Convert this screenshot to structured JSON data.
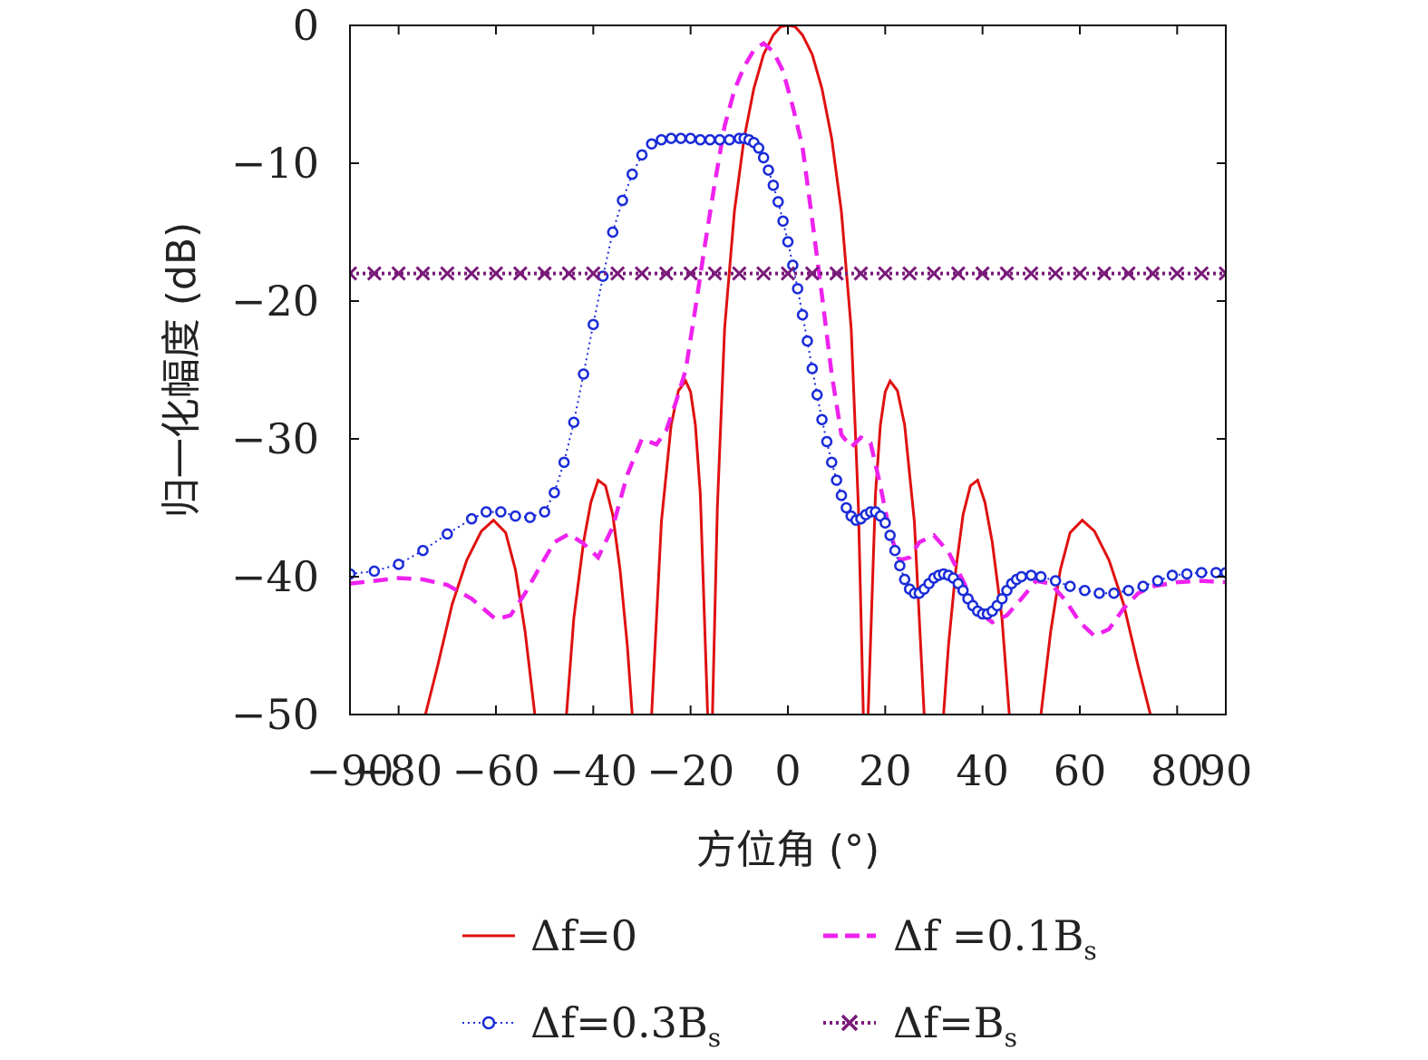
{
  "chart_data": {
    "type": "line",
    "xlabel": "方位角 (°)",
    "ylabel": "归一化幅度 (dB)",
    "xlim": [
      -90,
      90
    ],
    "ylim": [
      -50,
      0
    ],
    "xticks": [
      -90,
      -80,
      -60,
      -40,
      -20,
      0,
      20,
      40,
      60,
      80,
      90
    ],
    "xtick_labels": [
      "−90",
      "−80",
      "−60",
      "−40",
      "−20",
      "0",
      "20",
      "40",
      "60",
      "80",
      "90"
    ],
    "yticks": [
      0,
      -10,
      -20,
      -30,
      -40,
      -50
    ],
    "ytick_labels": [
      "0",
      "−10",
      "−20",
      "−30",
      "−40",
      "−50"
    ],
    "grid": false,
    "legend_position": "bottom",
    "series": [
      {
        "name": "Δf=0",
        "legend": {
          "main": "Δf=0",
          "sub": ""
        },
        "color": "#e01010",
        "style": "solid",
        "segments": [
          {
            "x": [
              -74.5,
              -72,
              -69,
              -66,
              -63,
              -60.5,
              -58,
              -56,
              -54,
              -52
            ],
            "y": [
              -50,
              -46.5,
              -42,
              -38.8,
              -36.7,
              -35.9,
              -36.8,
              -39.5,
              -44,
              -50
            ]
          },
          {
            "x": [
              -45.5,
              -44,
              -42,
              -40.5,
              -39,
              -37.5,
              -36,
              -34.5,
              -33,
              -32
            ],
            "y": [
              -50,
              -43,
              -37.5,
              -34.6,
              -33,
              -33.4,
              -35.5,
              -39.5,
              -45,
              -50
            ]
          },
          {
            "x": [
              -28,
              -26,
              -24,
              -22.5,
              -21,
              -20,
              -19,
              -18,
              -16.5
            ],
            "y": [
              -50,
              -36,
              -29,
              -26.5,
              -25.8,
              -26.6,
              -29,
              -34,
              -50
            ]
          },
          {
            "x": [
              -15.5,
              -14.5,
              -13,
              -11,
              -9,
              -7,
              -5,
              -3,
              -1.5,
              0,
              1.5,
              3,
              5,
              7,
              9,
              11,
              13,
              14.5,
              15.5
            ],
            "y": [
              -50,
              -35,
              -22,
              -13.5,
              -8.2,
              -4.6,
              -2.1,
              -0.7,
              -0.1,
              0,
              -0.1,
              -0.7,
              -2.1,
              -4.6,
              -8.2,
              -13.5,
              -22,
              -35,
              -50
            ]
          },
          {
            "x": [
              16.5,
              18,
              19,
              20,
              21,
              22.5,
              24,
              26,
              28
            ],
            "y": [
              -50,
              -34,
              -29,
              -26.6,
              -25.8,
              -26.5,
              -29,
              -36,
              -50
            ]
          },
          {
            "x": [
              32,
              33,
              34.5,
              36,
              37.5,
              39,
              40.5,
              42,
              44,
              45.5
            ],
            "y": [
              -50,
              -45,
              -39.5,
              -35.5,
              -33.4,
              -33,
              -34.6,
              -37.5,
              -43,
              -50
            ]
          },
          {
            "x": [
              52,
              54,
              56,
              58,
              60.5,
              63,
              66,
              69,
              72,
              74.5
            ],
            "y": [
              -50,
              -44,
              -39.5,
              -36.8,
              -35.9,
              -36.7,
              -38.8,
              -42,
              -46.5,
              -50
            ]
          }
        ]
      },
      {
        "name": "Δf =0.1Bs",
        "legend": {
          "main": "Δf =0.1B",
          "sub": "s"
        },
        "color": "#ee22ee",
        "style": "dashed",
        "x": [
          -90,
          -85,
          -80,
          -75,
          -70,
          -65,
          -60,
          -57,
          -54,
          -51,
          -48,
          -45,
          -42,
          -39,
          -36,
          -33,
          -30,
          -27,
          -25,
          -23,
          -21,
          -19,
          -17,
          -15,
          -13,
          -11,
          -9,
          -7,
          -5,
          -3,
          -1,
          1,
          3,
          5,
          7,
          9,
          11,
          13,
          15,
          17,
          19,
          21,
          23,
          25,
          27,
          30,
          33,
          36,
          39,
          42,
          45,
          48,
          51,
          54,
          57,
          60,
          63,
          66,
          69,
          72,
          75,
          80,
          85,
          90
        ],
        "y": [
          -40.5,
          -40.3,
          -40.1,
          -40.2,
          -40.6,
          -41.6,
          -43.1,
          -42.8,
          -41.2,
          -39.3,
          -37.5,
          -36.9,
          -37.6,
          -38.6,
          -36.4,
          -32.6,
          -30.0,
          -30.4,
          -29.4,
          -27.3,
          -25.0,
          -20.5,
          -15.8,
          -11.4,
          -7.3,
          -4.7,
          -3.0,
          -1.8,
          -1.3,
          -1.9,
          -3.3,
          -5.9,
          -8.8,
          -14.1,
          -19.6,
          -25.3,
          -29.7,
          -30.6,
          -29.9,
          -30.3,
          -33.4,
          -36.9,
          -38.8,
          -38.6,
          -37.5,
          -37.0,
          -38.2,
          -40.3,
          -42.5,
          -43.3,
          -42.8,
          -41.6,
          -40.3,
          -40.5,
          -41.7,
          -43.3,
          -44.3,
          -43.8,
          -42.3,
          -41.2,
          -40.7,
          -40.4,
          -40.3,
          -40.4
        ]
      },
      {
        "name": "Δf=0.3Bs",
        "legend": {
          "main": "Δf=0.3B",
          "sub": "s"
        },
        "color": "#1a2cd8",
        "style": "dotted-circle",
        "x": [
          -90,
          -85,
          -80,
          -75,
          -70,
          -65,
          -62,
          -59,
          -56,
          -53,
          -50,
          -48,
          -46,
          -44,
          -42,
          -40,
          -38,
          -36,
          -34,
          -32,
          -30,
          -28,
          -26,
          -24,
          -22,
          -20,
          -18,
          -16,
          -14,
          -12,
          -10,
          -9,
          -8,
          -7,
          -6,
          -5,
          -4,
          -3,
          -2,
          -1,
          0,
          1,
          2,
          3,
          4,
          5,
          6,
          7,
          8,
          9,
          10,
          11,
          12,
          13,
          14,
          15,
          16,
          17,
          18,
          19,
          20,
          21,
          22,
          23,
          24,
          25,
          26,
          27,
          28,
          29,
          30,
          31,
          32,
          33,
          34,
          35,
          36,
          37,
          38,
          39,
          40,
          41,
          42,
          43,
          44,
          45,
          46,
          47,
          48,
          50,
          52,
          55,
          58,
          61,
          64,
          67,
          70,
          73,
          76,
          79,
          82,
          85,
          88,
          90
        ],
        "y": [
          -39.8,
          -39.6,
          -39.1,
          -38.1,
          -36.9,
          -35.8,
          -35.3,
          -35.3,
          -35.6,
          -35.7,
          -35.3,
          -33.9,
          -31.7,
          -28.8,
          -25.3,
          -21.7,
          -18.2,
          -15.0,
          -12.7,
          -10.8,
          -9.4,
          -8.6,
          -8.3,
          -8.2,
          -8.2,
          -8.2,
          -8.3,
          -8.3,
          -8.3,
          -8.3,
          -8.2,
          -8.2,
          -8.3,
          -8.5,
          -8.9,
          -9.6,
          -10.5,
          -11.6,
          -12.8,
          -14.2,
          -15.7,
          -17.4,
          -19.1,
          -21.0,
          -22.9,
          -24.9,
          -26.8,
          -28.6,
          -30.2,
          -31.7,
          -33.0,
          -34.1,
          -35.0,
          -35.6,
          -35.9,
          -35.8,
          -35.5,
          -35.3,
          -35.3,
          -35.6,
          -36.1,
          -37.0,
          -38.1,
          -39.2,
          -40.2,
          -40.9,
          -41.2,
          -41.2,
          -40.9,
          -40.5,
          -40.1,
          -39.9,
          -39.8,
          -39.9,
          -40.1,
          -40.5,
          -41.0,
          -41.6,
          -42.1,
          -42.5,
          -42.7,
          -42.7,
          -42.5,
          -42.1,
          -41.6,
          -41.0,
          -40.5,
          -40.2,
          -40.0,
          -39.9,
          -40.0,
          -40.3,
          -40.7,
          -41.0,
          -41.2,
          -41.2,
          -41.0,
          -40.7,
          -40.3,
          -39.9,
          -39.8,
          -39.7,
          -39.7,
          -39.7
        ]
      },
      {
        "name": "Δf=Bs",
        "legend": {
          "main": "Δf=B",
          "sub": "s"
        },
        "color": "#7a1a7a",
        "style": "dotted-x",
        "x": [
          -90,
          -85,
          -80,
          -75,
          -70,
          -65,
          -60,
          -55,
          -50,
          -45,
          -40,
          -35,
          -30,
          -25,
          -20,
          -15,
          -10,
          -5,
          0,
          5,
          10,
          15,
          20,
          25,
          30,
          35,
          40,
          45,
          50,
          55,
          60,
          65,
          70,
          75,
          80,
          85,
          90
        ],
        "y": [
          -18,
          -18,
          -18,
          -18,
          -18,
          -18,
          -18,
          -18,
          -18,
          -18,
          -18,
          -18,
          -18,
          -18,
          -18,
          -18,
          -18,
          -18,
          -18,
          -18,
          -18,
          -18,
          -18,
          -18,
          -18,
          -18,
          -18,
          -18,
          -18,
          -18,
          -18,
          -18,
          -18,
          -18,
          -18,
          -18,
          -18
        ]
      }
    ]
  }
}
